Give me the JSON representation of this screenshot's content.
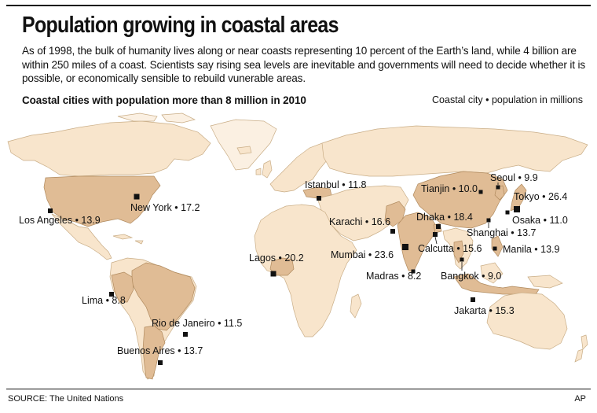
{
  "header": {
    "title": "Population growing in coastal areas",
    "intro": "As of 1998, the bulk of humanity lives along or near coasts representing 10 percent of the Earth’s land, while 4 billion are within 250 miles of a coast. Scientists say rising sea levels are inevitable and governments will need to decide whether it is possible, or economically sensible to rebuild vunerable areas.",
    "subhead": "Coastal cities with population more than 8 million in 2010",
    "legend": "Coastal city • population in millions"
  },
  "map": {
    "colors": {
      "land": "#f8e5cc",
      "highlighted_country": "#e0bc95",
      "marker": "#111111"
    },
    "cities": [
      {
        "name": "Los Angeles",
        "population": "13.9",
        "label": "Los Angeles • 13.9"
      },
      {
        "name": "New York",
        "population": "17.2",
        "label": "New York • 17.2"
      },
      {
        "name": "Lima",
        "population": "8.8",
        "label": "Lima • 8.8"
      },
      {
        "name": "Rio de Janeiro",
        "population": "11.5",
        "label": "Rio de Janeiro • 11.5"
      },
      {
        "name": "Buenos Aires",
        "population": "13.7",
        "label": "Buenos Aires • 13.7"
      },
      {
        "name": "Lagos",
        "population": "20.2",
        "label": "Lagos • 20.2"
      },
      {
        "name": "Istanbul",
        "population": "11.8",
        "label": "Istanbul • 11.8"
      },
      {
        "name": "Karachi",
        "population": "16.6",
        "label": "Karachi • 16.6"
      },
      {
        "name": "Mumbai",
        "population": "23.6",
        "label": "Mumbai • 23.6"
      },
      {
        "name": "Madras",
        "population": "8.2",
        "label": "Madras • 8.2"
      },
      {
        "name": "Calcutta",
        "population": "15.6",
        "label": "Calcutta • 15.6"
      },
      {
        "name": "Dhaka",
        "population": "18.4",
        "label": "Dhaka • 18.4"
      },
      {
        "name": "Tianjin",
        "population": "10.0",
        "label": "Tianjin • 10.0"
      },
      {
        "name": "Seoul",
        "population": "9.9",
        "label": "Seoul • 9.9"
      },
      {
        "name": "Tokyo",
        "population": "26.4",
        "label": "Tokyo • 26.4"
      },
      {
        "name": "Osaka",
        "population": "11.0",
        "label": "Osaka • 11.0"
      },
      {
        "name": "Shanghai",
        "population": "13.7",
        "label": "Shanghai • 13.7"
      },
      {
        "name": "Manila",
        "population": "13.9",
        "label": "Manila • 13.9"
      },
      {
        "name": "Bangkok",
        "population": "9.0",
        "label": "Bangkok • 9.0"
      },
      {
        "name": "Jakarta",
        "population": "15.3",
        "label": "Jakarta • 15.3"
      }
    ]
  },
  "footer": {
    "source": "SOURCE: The United Nations",
    "credit": "AP"
  }
}
